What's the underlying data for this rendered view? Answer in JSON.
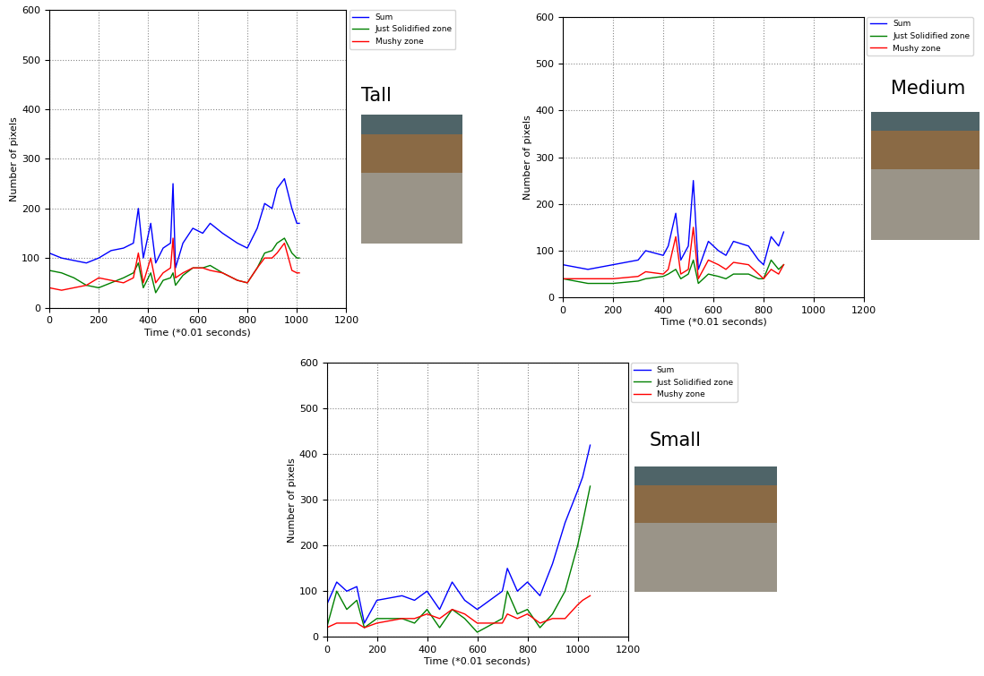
{
  "chart_data": [
    {
      "type": "line",
      "title": "Tall",
      "x_label": "Time (*0.01 seconds)",
      "y_label": "Number of pixels",
      "x": [
        0,
        50,
        100,
        150,
        200,
        250,
        300,
        340,
        360,
        380,
        410,
        430,
        460,
        490,
        500,
        510,
        540,
        580,
        620,
        650,
        700,
        760,
        800,
        840,
        870,
        900,
        920,
        950,
        980,
        1000,
        1010
      ],
      "series": [
        {
          "name": "Sum",
          "color": "#0000ff",
          "values": [
            110,
            100,
            95,
            90,
            100,
            115,
            120,
            130,
            200,
            100,
            170,
            90,
            120,
            130,
            250,
            80,
            130,
            160,
            150,
            170,
            150,
            130,
            120,
            160,
            210,
            200,
            240,
            260,
            200,
            170,
            170
          ]
        },
        {
          "name": "Just Solidified zone",
          "color": "#008000",
          "values": [
            75,
            70,
            60,
            45,
            40,
            50,
            60,
            70,
            90,
            40,
            70,
            30,
            55,
            60,
            70,
            45,
            65,
            80,
            80,
            85,
            70,
            55,
            50,
            80,
            110,
            115,
            130,
            140,
            110,
            100,
            100
          ]
        },
        {
          "name": "Mushy zone",
          "color": "#ff0000",
          "values": [
            40,
            35,
            40,
            45,
            60,
            55,
            50,
            60,
            110,
            50,
            100,
            50,
            70,
            80,
            140,
            60,
            70,
            80,
            80,
            75,
            70,
            55,
            50,
            80,
            100,
            100,
            110,
            130,
            75,
            70,
            70
          ]
        }
      ],
      "xlim": [
        0,
        1200
      ],
      "xticks": [
        0,
        200,
        400,
        600,
        800,
        1000,
        1200
      ],
      "ylim": [
        0,
        600
      ],
      "yticks": [
        0,
        100,
        200,
        300,
        400,
        500,
        600
      ],
      "grid": true,
      "legend": "upper left"
    },
    {
      "type": "line",
      "title": "Medium",
      "x_label": "Time (*0.01 seconds)",
      "y_label": "Number of pixels",
      "x": [
        0,
        100,
        200,
        300,
        330,
        400,
        420,
        450,
        470,
        500,
        520,
        540,
        580,
        620,
        650,
        680,
        740,
        780,
        800,
        830,
        860,
        880
      ],
      "series": [
        {
          "name": "Sum",
          "color": "#0000ff",
          "values": [
            70,
            60,
            70,
            80,
            100,
            90,
            110,
            180,
            80,
            110,
            250,
            60,
            120,
            100,
            90,
            120,
            110,
            80,
            70,
            130,
            110,
            140
          ]
        },
        {
          "name": "Just Solidified zone",
          "color": "#008000",
          "values": [
            40,
            30,
            30,
            35,
            40,
            45,
            50,
            60,
            40,
            50,
            80,
            30,
            50,
            45,
            40,
            50,
            50,
            40,
            40,
            80,
            60,
            70
          ]
        },
        {
          "name": "Mushy zone",
          "color": "#ff0000",
          "values": [
            40,
            40,
            40,
            45,
            55,
            50,
            60,
            130,
            50,
            60,
            150,
            40,
            80,
            70,
            60,
            75,
            70,
            50,
            40,
            60,
            50,
            70
          ]
        }
      ],
      "xlim": [
        0,
        1200
      ],
      "xticks": [
        0,
        200,
        400,
        600,
        800,
        1000,
        1200
      ],
      "ylim": [
        0,
        600
      ],
      "yticks": [
        0,
        100,
        200,
        300,
        400,
        500,
        600
      ],
      "grid": true,
      "legend": "upper left"
    },
    {
      "type": "line",
      "title": "Small",
      "x_label": "Time (*0.01 seconds)",
      "y_label": "Number of pixels",
      "x": [
        0,
        40,
        80,
        120,
        150,
        200,
        300,
        350,
        400,
        450,
        500,
        550,
        600,
        700,
        720,
        760,
        800,
        850,
        900,
        950,
        1000,
        1020,
        1050
      ],
      "series": [
        {
          "name": "Sum",
          "color": "#0000ff",
          "values": [
            70,
            120,
            100,
            110,
            30,
            80,
            90,
            80,
            100,
            60,
            120,
            80,
            60,
            100,
            150,
            100,
            120,
            90,
            160,
            250,
            320,
            350,
            420
          ]
        },
        {
          "name": "Just Solidified zone",
          "color": "#008000",
          "values": [
            20,
            100,
            60,
            80,
            20,
            40,
            40,
            30,
            60,
            20,
            60,
            40,
            10,
            40,
            100,
            50,
            60,
            20,
            50,
            100,
            200,
            250,
            330
          ]
        },
        {
          "name": "Mushy zone",
          "color": "#ff0000",
          "values": [
            20,
            30,
            30,
            30,
            20,
            30,
            40,
            40,
            50,
            40,
            60,
            50,
            30,
            30,
            50,
            40,
            50,
            30,
            40,
            40,
            70,
            80,
            90
          ]
        }
      ],
      "xlim": [
        0,
        1200
      ],
      "xticks": [
        0,
        200,
        400,
        600,
        800,
        1000,
        1200
      ],
      "ylim": [
        0,
        600
      ],
      "yticks": [
        0,
        100,
        200,
        300,
        400,
        500,
        600
      ],
      "grid": true,
      "legend": "upper left"
    }
  ]
}
